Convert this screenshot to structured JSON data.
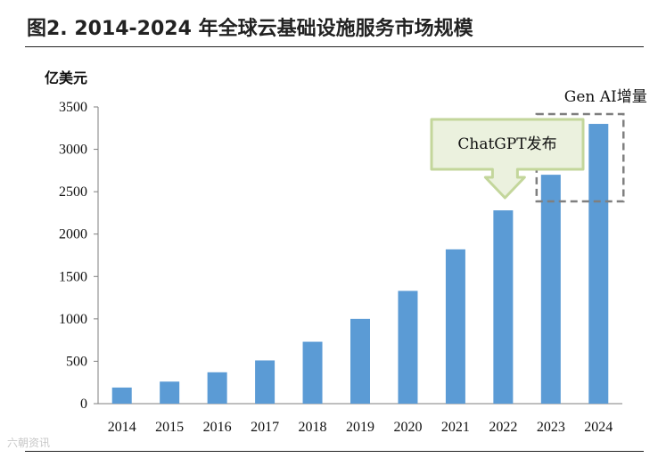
{
  "figure": {
    "title": "图2. 2014-2024 年全球云基础设施服务市场规模",
    "watermark": "六朝资讯"
  },
  "chart_data": {
    "type": "bar",
    "unit_label": "亿美元",
    "categories": [
      "2014",
      "2015",
      "2016",
      "2017",
      "2018",
      "2019",
      "2020",
      "2021",
      "2022",
      "2023",
      "2024"
    ],
    "values": [
      190,
      260,
      370,
      510,
      730,
      1000,
      1330,
      1820,
      2280,
      2700,
      3300
    ],
    "ylim": [
      0,
      3500
    ],
    "yticks": [
      0,
      500,
      1000,
      1500,
      2000,
      2500,
      3000,
      3500
    ],
    "bar_color": "#5b9bd5",
    "annotations": {
      "chatgpt": {
        "text": "ChatGPT发布",
        "target": "2022",
        "fill": "#ebf1de",
        "stroke": "#c3d69b"
      },
      "genai": {
        "text": "Gen AI增量",
        "targets": [
          "2023",
          "2024"
        ],
        "stroke": "#7f7f7f"
      }
    }
  }
}
